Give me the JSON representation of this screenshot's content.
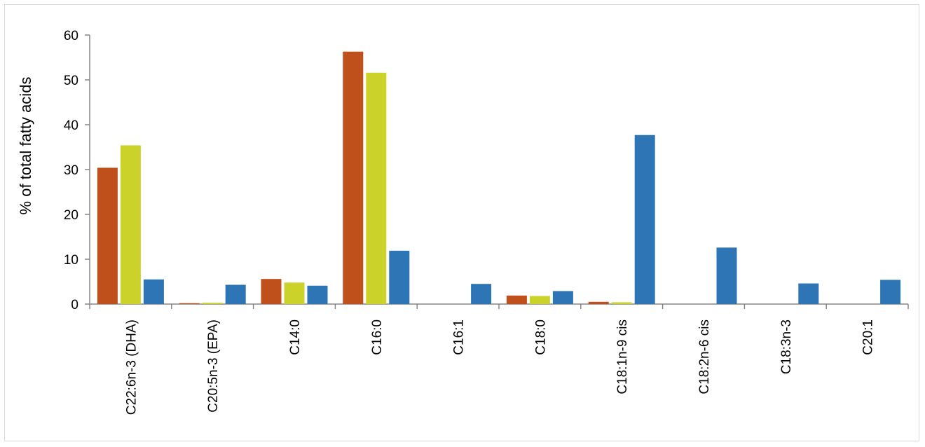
{
  "chart_data": {
    "type": "bar",
    "title": "",
    "xlabel": "",
    "ylabel": "% of total fatty acids",
    "ylim": [
      0,
      60
    ],
    "yticks": [
      0,
      10,
      20,
      30,
      40,
      50,
      60
    ],
    "grid": false,
    "legend": "none",
    "categories": [
      "C22:6n-3 (DHA)",
      "C20:5n-3 (EPA)",
      "C14:0",
      "C16:0",
      "C16:1",
      "C18:0",
      "C18:1n-9 cis",
      "C18:2n-6 cis",
      "C18:3n-3",
      "C20:1"
    ],
    "series": [
      {
        "color": "#c0501b",
        "values": [
          30.4,
          0.2,
          5.6,
          56.3,
          0.0,
          1.9,
          0.5,
          0.0,
          0.0,
          0.0
        ]
      },
      {
        "color": "#cbd32b",
        "values": [
          35.4,
          0.3,
          4.8,
          51.6,
          0.0,
          1.8,
          0.4,
          0.0,
          0.0,
          0.0
        ]
      },
      {
        "color": "#2e75b6",
        "values": [
          5.5,
          4.3,
          4.1,
          11.9,
          4.5,
          2.9,
          37.7,
          12.6,
          4.6,
          5.4
        ]
      }
    ]
  }
}
